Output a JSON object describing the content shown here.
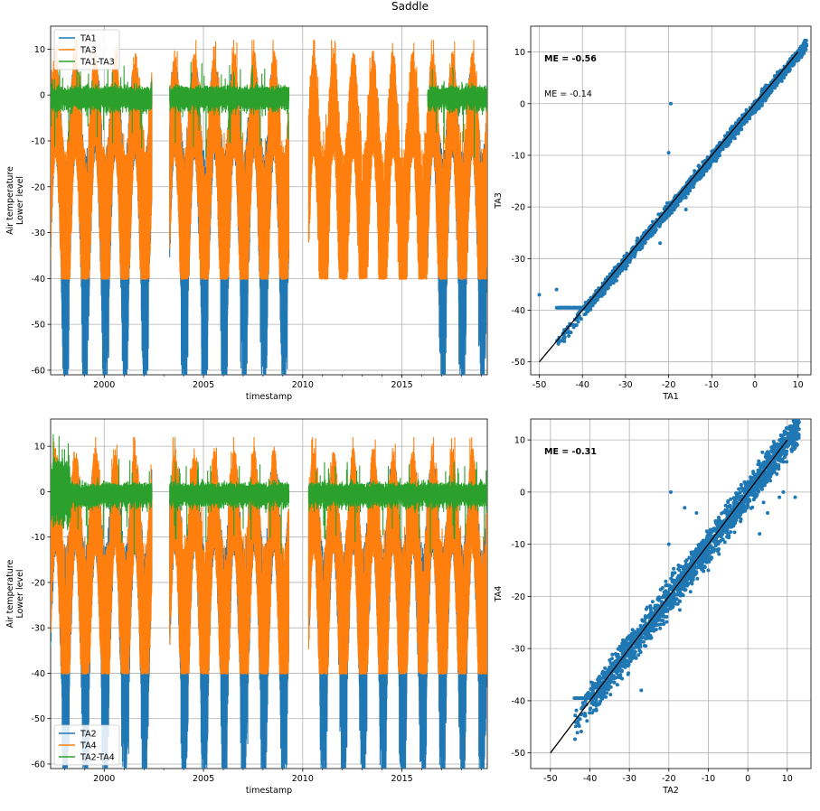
{
  "figure": {
    "title": "Saddle"
  },
  "colors": {
    "blue": "#1f77b4",
    "orange": "#ff7f0e",
    "green": "#2ca02c",
    "black": "#000000",
    "grid": "#b0b0b0"
  },
  "chart_data": [
    {
      "type": "line",
      "id": "ts-top",
      "title": "",
      "xlabel": "timestamp",
      "ylabel": [
        "Air temperature",
        "Lower level"
      ],
      "xlim": [
        1997.3,
        2019.3
      ],
      "ylim": [
        -61,
        15
      ],
      "xticks": [
        2000,
        2005,
        2010,
        2015
      ],
      "yticks": [
        10,
        0,
        -10,
        -20,
        -30,
        -40,
        -50,
        -60
      ],
      "legend": {
        "placement": "upper-left"
      },
      "grid": true,
      "series": [
        {
          "name": "TA1",
          "color": "#1f77b4",
          "min_typical": -55,
          "max_typical": 5
        },
        {
          "name": "TA3",
          "color": "#ff7f0e",
          "min_typical": -40,
          "max_typical": 10
        },
        {
          "name": "TA1-TA3",
          "color": "#2ca02c",
          "min_typical": -3,
          "max_typical": 1
        }
      ],
      "segments": [
        {
          "x": [
            1997.3,
            2002.4
          ],
          "series": [
            "TA1",
            "TA3",
            "TA1-TA3"
          ]
        },
        {
          "x": [
            2003.3,
            2009.3
          ],
          "series": [
            "TA1",
            "TA3",
            "TA1-TA3"
          ]
        },
        {
          "x": [
            2010.3,
            2016.3
          ],
          "series": [
            "TA3"
          ]
        },
        {
          "x": [
            2016.3,
            2019.3
          ],
          "series": [
            "TA1",
            "TA3",
            "TA1-TA3"
          ]
        }
      ]
    },
    {
      "type": "scatter",
      "id": "sc-top",
      "title": "",
      "xlabel": "TA1",
      "ylabel": "TA3",
      "xlim": [
        -52,
        13
      ],
      "ylim": [
        -52.5,
        15
      ],
      "xticks": [
        -50,
        -40,
        -30,
        -20,
        -10,
        0,
        10
      ],
      "yticks": [
        10,
        0,
        -10,
        -20,
        -30,
        -40,
        -50
      ],
      "grid": true,
      "annotations": [
        {
          "text": "ME = -0.56",
          "bold": true
        },
        {
          "text": "ME = -0.14",
          "bold": false
        }
      ],
      "one_to_one_line": {
        "x": [
          -50,
          10
        ],
        "y": [
          -50,
          10
        ]
      },
      "point_cloud": {
        "x_range": [
          -46,
          12
        ],
        "offset": -0.56,
        "spread": 0.6
      }
    },
    {
      "type": "line",
      "id": "ts-bottom",
      "title": "",
      "xlabel": "timestamp",
      "ylabel": [
        "Air temperature",
        "Lower level"
      ],
      "xlim": [
        1997.3,
        2019.3
      ],
      "ylim": [
        -61,
        16
      ],
      "xticks": [
        2000,
        2005,
        2010,
        2015
      ],
      "yticks": [
        10,
        0,
        -10,
        -20,
        -30,
        -40,
        -50,
        -60
      ],
      "legend": {
        "placement": "lower-left"
      },
      "grid": true,
      "series": [
        {
          "name": "TA2",
          "color": "#1f77b4",
          "min_typical": -55,
          "max_typical": 5
        },
        {
          "name": "TA4",
          "color": "#ff7f0e",
          "min_typical": -40,
          "max_typical": 10
        },
        {
          "name": "TA2-TA4",
          "color": "#2ca02c",
          "min_typical": -3,
          "max_typical": 2
        }
      ],
      "segments": [
        {
          "x": [
            1997.3,
            2002.4
          ],
          "series": [
            "TA2",
            "TA4",
            "TA2-TA4"
          ]
        },
        {
          "x": [
            2003.3,
            2009.3
          ],
          "series": [
            "TA2",
            "TA4",
            "TA2-TA4"
          ]
        },
        {
          "x": [
            2010.3,
            2019.3
          ],
          "series": [
            "TA2",
            "TA4",
            "TA2-TA4"
          ]
        }
      ]
    },
    {
      "type": "scatter",
      "id": "sc-bottom",
      "title": "",
      "xlabel": "TA2",
      "ylabel": "TA4",
      "xlim": [
        -55,
        16
      ],
      "ylim": [
        -53,
        14
      ],
      "xticks": [
        -50,
        -40,
        -30,
        -20,
        -10,
        0,
        10
      ],
      "yticks": [
        10,
        0,
        -10,
        -20,
        -30,
        -40,
        -50
      ],
      "grid": true,
      "annotations": [
        {
          "text": "ME = -0.31",
          "bold": true
        }
      ],
      "one_to_one_line": {
        "x": [
          -50,
          10
        ],
        "y": [
          -50,
          10
        ]
      },
      "point_cloud": {
        "x_range": [
          -44,
          13
        ],
        "offset": -0.31,
        "spread": 1.6
      }
    }
  ]
}
